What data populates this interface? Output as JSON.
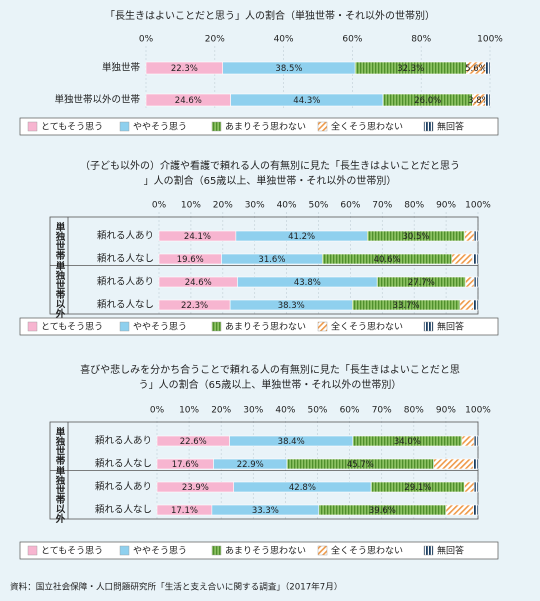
{
  "categories": [
    "とてもそう思う",
    "ややそう思う",
    "あまりそう思わない",
    "全くそう思わない",
    "無回答"
  ],
  "colors": [
    "#f7b5d0",
    "#8fd0ee",
    "#72b04a",
    "#f6b27a",
    "#1c3f62"
  ],
  "source": "資料：国立社会保障・人口問題研究所「生活と支え合いに関する調査」（2017年7月）",
  "chart_data": [
    {
      "type": "bar",
      "stacked": true,
      "orientation": "horizontal",
      "title": "「長生きはよいことだと思う」人の割合（単独世帯・それ以外の世帯別）",
      "x_ticks": [
        "0%",
        "20%",
        "40%",
        "60%",
        "80%",
        "100%"
      ],
      "xlim": [
        0,
        100
      ],
      "legend": "bottom",
      "rows": [
        {
          "label": "単独世帯",
          "values": [
            22.3,
            38.5,
            32.3,
            5.6,
            1.3
          ]
        },
        {
          "label": "単独世帯以外の世帯",
          "values": [
            24.6,
            44.3,
            26.0,
            3.8,
            1.3
          ]
        }
      ],
      "value_labels": [
        [
          "22.3%",
          "38.5%",
          "32.3%",
          "5.6%"
        ],
        [
          "24.6%",
          "44.3%",
          "26.0%",
          "3.8%"
        ]
      ]
    },
    {
      "type": "bar",
      "stacked": true,
      "orientation": "horizontal",
      "title": "（子ども以外の）介護や看護で頼れる人の有無別に見た「長生きはよいことだと思う」人の割合（65歳以上、単独世帯・それ以外の世帯別）",
      "x_ticks": [
        "0%",
        "10%",
        "20%",
        "30%",
        "40%",
        "50%",
        "60%",
        "70%",
        "80%",
        "90%",
        "100%"
      ],
      "xlim": [
        0,
        100
      ],
      "legend": "bottom",
      "groups": [
        "単独世帯",
        "単独世帯以外"
      ],
      "rows": [
        {
          "group": 0,
          "label": "頼れる人あり",
          "values": [
            24.1,
            41.2,
            30.5,
            3.0,
            1.2
          ]
        },
        {
          "group": 0,
          "label": "頼れる人なし",
          "values": [
            19.6,
            31.6,
            40.6,
            6.5,
            1.7
          ]
        },
        {
          "group": 1,
          "label": "頼れる人あり",
          "values": [
            24.6,
            43.8,
            27.7,
            2.7,
            1.2
          ]
        },
        {
          "group": 1,
          "label": "頼れる人なし",
          "values": [
            22.3,
            38.3,
            33.7,
            4.3,
            1.4
          ]
        }
      ],
      "value_labels": [
        [
          "24.1%",
          "41.2%",
          "30.5%"
        ],
        [
          "19.6%",
          "31.6%",
          "40.6%"
        ],
        [
          "24.6%",
          "43.8%",
          "27.7%"
        ],
        [
          "22.3%",
          "38.3%",
          "33.7%"
        ]
      ]
    },
    {
      "type": "bar",
      "stacked": true,
      "orientation": "horizontal",
      "title": "喜びや悲しみを分かち合うことで頼れる人の有無別に見た「長生きはよいことだと思う」人の割合（65歳以上、単独世帯・それ以外の世帯別）",
      "x_ticks": [
        "0%",
        "10%",
        "20%",
        "30%",
        "40%",
        "50%",
        "60%",
        "70%",
        "80%",
        "90%",
        "100%"
      ],
      "xlim": [
        0,
        100
      ],
      "legend": "bottom",
      "groups": [
        "単独世帯",
        "単独世帯以外"
      ],
      "rows": [
        {
          "group": 0,
          "label": "頼れる人あり",
          "values": [
            22.6,
            38.4,
            34.0,
            3.8,
            1.2
          ]
        },
        {
          "group": 0,
          "label": "頼れる人なし",
          "values": [
            17.6,
            22.9,
            45.7,
            12.3,
            1.5
          ]
        },
        {
          "group": 1,
          "label": "頼れる人あり",
          "values": [
            23.9,
            42.8,
            29.1,
            3.0,
            1.2
          ]
        },
        {
          "group": 1,
          "label": "頼れる人なし",
          "values": [
            17.1,
            33.3,
            39.6,
            8.6,
            1.4
          ]
        }
      ],
      "value_labels": [
        [
          "22.6%",
          "38.4%",
          "34.0%"
        ],
        [
          "17.6%",
          "22.9%",
          "45.7%"
        ],
        [
          "23.9%",
          "42.8%",
          "29.1%"
        ],
        [
          "17.1%",
          "33.3%",
          "39.6%"
        ]
      ]
    }
  ]
}
